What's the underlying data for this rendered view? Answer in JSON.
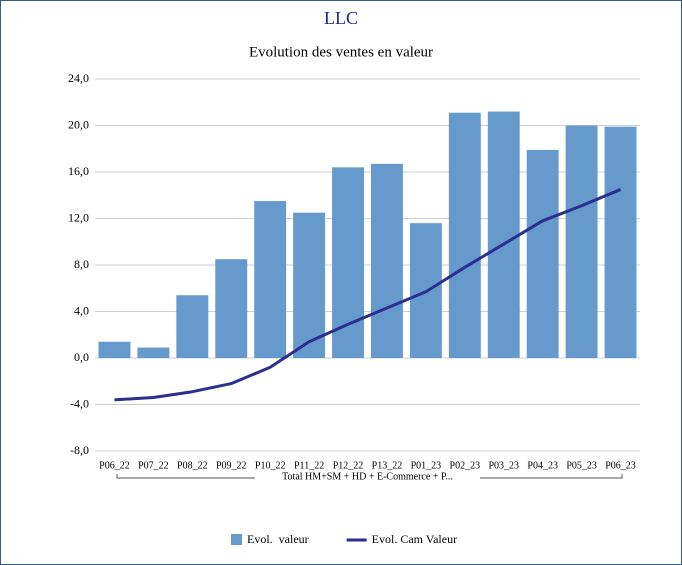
{
  "chart_data": {
    "type": "bar_line",
    "title": "LLC",
    "subtitle": "Evolution des ventes en valeur",
    "categories": [
      "P06_22",
      "P07_22",
      "P08_22",
      "P09_22",
      "P10_22",
      "P11_22",
      "P12_22",
      "P13_22",
      "P01_23",
      "P02_23",
      "P03_23",
      "P04_23",
      "P05_23",
      "P06_23"
    ],
    "x_group_label": "Total HM+SM + HD + E-Commerce + P...",
    "series": [
      {
        "name": "Evol.  valeur",
        "type": "bar",
        "color": "#6699cc",
        "values": [
          1.4,
          0.9,
          5.4,
          8.5,
          13.5,
          12.5,
          16.4,
          16.7,
          11.6,
          21.1,
          21.2,
          17.9,
          20.0,
          19.9
        ]
      },
      {
        "name": "Evol. Cam Valeur",
        "type": "line",
        "color": "#2b2f8f",
        "values": [
          -3.6,
          -3.4,
          -2.9,
          -2.2,
          -0.8,
          1.4,
          2.9,
          4.3,
          5.7,
          7.8,
          9.8,
          11.8,
          13.1,
          14.5
        ]
      }
    ],
    "ylim": [
      -8,
      24
    ],
    "yticks": [
      {
        "value": -8,
        "label": "-8,0"
      },
      {
        "value": -4,
        "label": "-4,0"
      },
      {
        "value": 0,
        "label": "0,0"
      },
      {
        "value": 4,
        "label": "4,0"
      },
      {
        "value": 8,
        "label": "8,0"
      },
      {
        "value": 12,
        "label": "12,0"
      },
      {
        "value": 16,
        "label": "16,0"
      },
      {
        "value": 20,
        "label": "20,0"
      },
      {
        "value": 24,
        "label": "24,0"
      }
    ],
    "grid": true,
    "legend": "bottom"
  }
}
